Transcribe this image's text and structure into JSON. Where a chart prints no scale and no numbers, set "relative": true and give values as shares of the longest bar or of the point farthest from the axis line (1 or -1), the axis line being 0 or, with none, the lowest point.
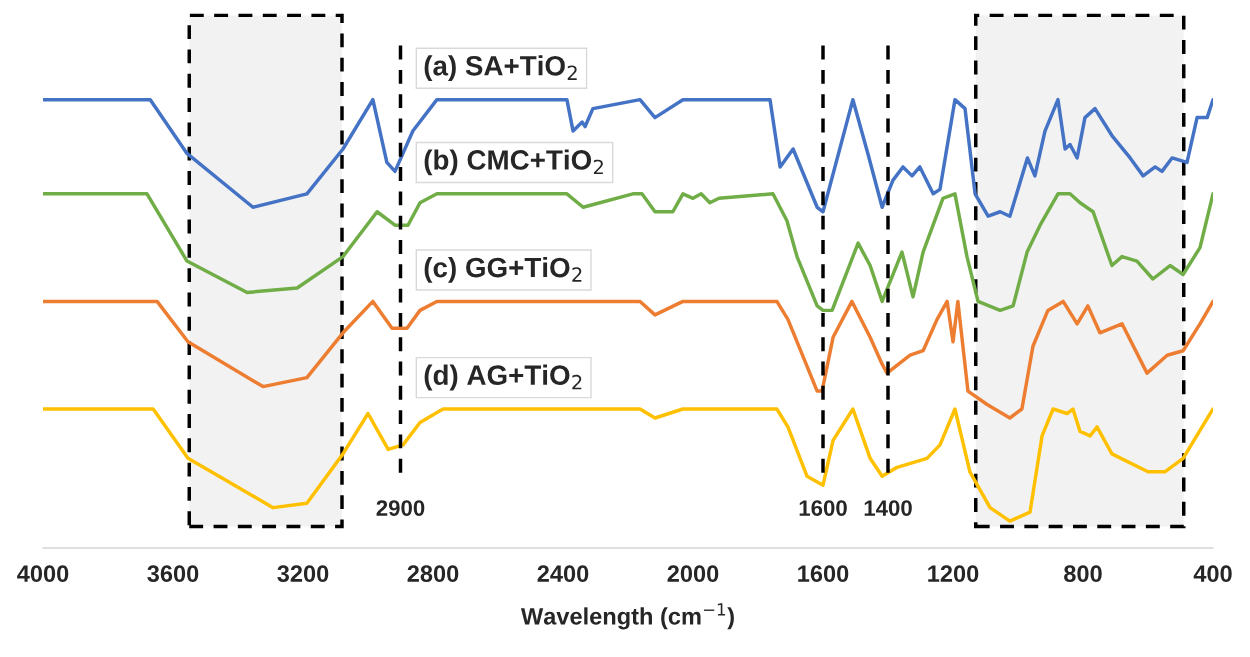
{
  "chart_data": {
    "type": "line",
    "relative": true,
    "xlabel": "Wavelength (cm$^{−1}$)",
    "xlim": [
      4000,
      400
    ],
    "xticks": [
      4000,
      3600,
      3200,
      2800,
      2400,
      2000,
      1600,
      1200,
      800,
      400
    ],
    "series": [
      {
        "name": "(a) SA+TiO$_{2}$",
        "color": "#4472c4",
        "x": [
          4000,
          3670,
          3557,
          3354,
          3188,
          3077,
          2985,
          2942,
          2917,
          2862,
          2788,
          2388,
          2369,
          2341,
          2332,
          2308,
          2163,
          2117,
          2031,
          1763,
          1732,
          1692,
          1618,
          1600,
          1508,
          1462,
          1418,
          1385,
          1354,
          1326,
          1302,
          1261,
          1240,
          1194,
          1163,
          1132,
          1092,
          1055,
          1025,
          971,
          948,
          917,
          877,
          855,
          840,
          818,
          794,
          763,
          711,
          655,
          615,
          578,
          557,
          526,
          480,
          449,
          418,
          400
        ],
        "values": [
          1.0,
          1.0,
          0.88,
          0.76,
          0.79,
          0.89,
          1.0,
          0.86,
          0.84,
          0.93,
          1.0,
          1.0,
          0.93,
          0.95,
          0.94,
          0.98,
          1.0,
          0.96,
          1.0,
          1.0,
          0.85,
          0.89,
          0.76,
          0.75,
          1.0,
          0.88,
          0.76,
          0.82,
          0.85,
          0.83,
          0.85,
          0.79,
          0.8,
          1.0,
          0.98,
          0.79,
          0.74,
          0.75,
          0.74,
          0.87,
          0.83,
          0.93,
          1.0,
          0.89,
          0.9,
          0.87,
          0.96,
          0.98,
          0.92,
          0.87,
          0.83,
          0.85,
          0.84,
          0.87,
          0.86,
          0.96,
          0.96,
          1.0
        ]
      },
      {
        "name": "(b) CMC+TiO$_{2}$",
        "color": "#70ad47",
        "x": [
          4000,
          3680,
          3557,
          3372,
          3218,
          3077,
          2972,
          2917,
          2877,
          2840,
          2788,
          2388,
          2338,
          2185,
          2157,
          2117,
          2062,
          2031,
          2000,
          1975,
          1948,
          1920,
          1754,
          1711,
          1680,
          1618,
          1600,
          1572,
          1492,
          1455,
          1418,
          1357,
          1323,
          1292,
          1231,
          1194,
          1157,
          1123,
          1055,
          1015,
          972,
          932,
          877,
          840,
          809,
          769,
          711,
          680,
          634,
          585,
          532,
          492,
          440,
          400
        ],
        "values": [
          0.79,
          0.79,
          0.64,
          0.57,
          0.58,
          0.65,
          0.75,
          0.72,
          0.72,
          0.77,
          0.79,
          0.79,
          0.76,
          0.79,
          0.79,
          0.75,
          0.75,
          0.79,
          0.78,
          0.79,
          0.77,
          0.78,
          0.79,
          0.73,
          0.65,
          0.54,
          0.53,
          0.53,
          0.68,
          0.63,
          0.55,
          0.66,
          0.56,
          0.66,
          0.78,
          0.79,
          0.65,
          0.55,
          0.53,
          0.54,
          0.66,
          0.72,
          0.79,
          0.79,
          0.77,
          0.75,
          0.63,
          0.65,
          0.64,
          0.6,
          0.63,
          0.61,
          0.67,
          0.79
        ]
      },
      {
        "name": "(c) GG+TiO$_{2}$",
        "color": "#ed7d31",
        "x": [
          4000,
          3649,
          3554,
          3323,
          3188,
          3077,
          2985,
          2926,
          2880,
          2840,
          2788,
          2163,
          2117,
          2031,
          1742,
          1708,
          1618,
          1603,
          1569,
          1511,
          1455,
          1418,
          1403,
          1332,
          1292,
          1249,
          1218,
          1200,
          1185,
          1154,
          1095,
          1025,
          988,
          954,
          908,
          861,
          818,
          785,
          748,
          680,
          603,
          541,
          492,
          440,
          400
        ],
        "values": [
          0.55,
          0.55,
          0.46,
          0.36,
          0.38,
          0.48,
          0.55,
          0.49,
          0.49,
          0.53,
          0.55,
          0.55,
          0.52,
          0.55,
          0.55,
          0.51,
          0.35,
          0.35,
          0.47,
          0.55,
          0.47,
          0.41,
          0.39,
          0.43,
          0.44,
          0.51,
          0.55,
          0.46,
          0.55,
          0.35,
          0.32,
          0.29,
          0.31,
          0.45,
          0.53,
          0.55,
          0.5,
          0.54,
          0.48,
          0.5,
          0.39,
          0.43,
          0.44,
          0.5,
          0.55
        ]
      },
      {
        "name": "(d) AG+TiO$_{2}$",
        "color": "#ffc000",
        "x": [
          4000,
          3661,
          3554,
          3292,
          3188,
          3077,
          3000,
          2938,
          2892,
          2840,
          2769,
          2163,
          2117,
          2031,
          1742,
          1708,
          1649,
          1600,
          1569,
          1508,
          1455,
          1418,
          1372,
          1280,
          1240,
          1194,
          1148,
          1086,
          1025,
          963,
          926,
          892,
          849,
          831,
          809,
          778,
          757,
          711,
          600,
          548,
          492,
          400
        ],
        "values": [
          0.31,
          0.31,
          0.2,
          0.09,
          0.1,
          0.21,
          0.3,
          0.22,
          0.23,
          0.28,
          0.31,
          0.31,
          0.29,
          0.31,
          0.31,
          0.27,
          0.16,
          0.14,
          0.24,
          0.31,
          0.2,
          0.16,
          0.18,
          0.2,
          0.23,
          0.31,
          0.17,
          0.09,
          0.06,
          0.08,
          0.25,
          0.31,
          0.3,
          0.31,
          0.26,
          0.25,
          0.27,
          0.21,
          0.17,
          0.17,
          0.2,
          0.31
        ]
      }
    ],
    "ref_lines": [
      {
        "axis": "x",
        "value": 2900,
        "label": "2900",
        "line_style": "dashed",
        "color": "#000000"
      },
      {
        "axis": "x",
        "value": 1600,
        "label": "1600",
        "line_style": "dashed",
        "color": "#000000"
      },
      {
        "axis": "x",
        "value": 1400,
        "label": "1400",
        "line_style": "dashed",
        "color": "#000000"
      }
    ],
    "bands": [
      {
        "axis": "x",
        "from": 3550,
        "to": 3080,
        "color": "#000000"
      },
      {
        "axis": "x",
        "from": 1130,
        "to": 490,
        "color": "#000000"
      }
    ]
  }
}
